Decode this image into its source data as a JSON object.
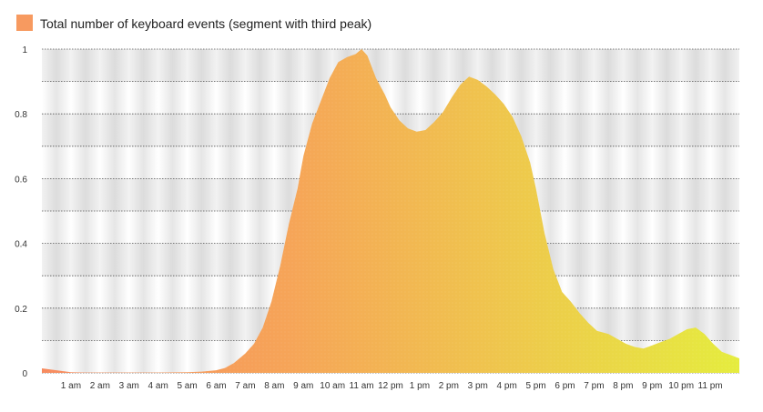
{
  "chart_data": {
    "type": "area",
    "legend": {
      "label": "Total number of keyboard events (segment with third peak)",
      "placement": "top-left"
    },
    "ylim": [
      0,
      1
    ],
    "y_ticks": [
      "0",
      "0.2",
      "0.4",
      "0.6",
      "0.8",
      "1"
    ],
    "y_tick_values": [
      0,
      0.2,
      0.4,
      0.6,
      0.8,
      1
    ],
    "x_range_hours": [
      0,
      24
    ],
    "x_tick_labels": [
      "1 am",
      "2 am",
      "3 am",
      "4 am",
      "5 am",
      "6 am",
      "7 am",
      "8 am",
      "9 am",
      "10 am",
      "11 am",
      "12 pm",
      "1 pm",
      "2 pm",
      "3 pm",
      "4 pm",
      "5 pm",
      "6 pm",
      "7 pm",
      "8 pm",
      "9 pm",
      "10 pm",
      "11 pm"
    ],
    "x_tick_hours": [
      1,
      2,
      3,
      4,
      5,
      6,
      7,
      8,
      9,
      10,
      11,
      12,
      13,
      14,
      15,
      16,
      17,
      18,
      19,
      20,
      21,
      22,
      23
    ],
    "grid": true,
    "series": [
      {
        "name": "Total number of keyboard events (segment with third peak)",
        "x_hours": [
          0,
          0.5,
          1,
          1.5,
          2,
          3,
          4,
          5,
          5.5,
          6,
          6.3,
          6.6,
          7,
          7.3,
          7.6,
          7.9,
          8.2,
          8.5,
          8.8,
          9,
          9.3,
          9.6,
          9.9,
          10.2,
          10.5,
          10.8,
          11,
          11.2,
          11.5,
          11.8,
          12,
          12.3,
          12.6,
          12.9,
          13.2,
          13.5,
          13.8,
          14.1,
          14.4,
          14.7,
          15,
          15.3,
          15.6,
          15.9,
          16.2,
          16.5,
          16.8,
          17,
          17.3,
          17.6,
          17.9,
          18.2,
          18.5,
          18.8,
          19.1,
          19.5,
          19.8,
          20.1,
          20.4,
          20.7,
          21,
          21.3,
          21.6,
          21.9,
          22.2,
          22.5,
          22.8,
          23.1,
          23.4,
          23.7,
          24
        ],
        "values": [
          0.014,
          0.008,
          0.002,
          0.001,
          0.001,
          0.001,
          0.001,
          0.002,
          0.004,
          0.008,
          0.015,
          0.03,
          0.06,
          0.09,
          0.14,
          0.22,
          0.33,
          0.46,
          0.57,
          0.67,
          0.77,
          0.84,
          0.91,
          0.96,
          0.975,
          0.985,
          1.0,
          0.98,
          0.91,
          0.86,
          0.82,
          0.78,
          0.755,
          0.745,
          0.75,
          0.775,
          0.805,
          0.85,
          0.89,
          0.915,
          0.905,
          0.885,
          0.86,
          0.83,
          0.79,
          0.73,
          0.65,
          0.57,
          0.43,
          0.32,
          0.25,
          0.22,
          0.185,
          0.155,
          0.13,
          0.12,
          0.105,
          0.09,
          0.08,
          0.075,
          0.085,
          0.095,
          0.105,
          0.12,
          0.135,
          0.14,
          0.12,
          0.09,
          0.065,
          0.055,
          0.045
        ]
      }
    ]
  }
}
